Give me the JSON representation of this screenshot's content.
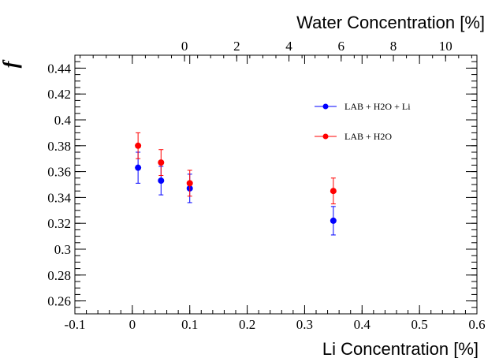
{
  "chart_data": {
    "type": "scatter",
    "title": "",
    "xlabel": "Li Concentration [%]",
    "x2label": "Water Concentration [%]",
    "ylabel": "f",
    "xlim": [
      -0.1,
      0.6
    ],
    "x2lim": [
      -4.2,
      11.2
    ],
    "ylim": [
      0.25,
      0.45
    ],
    "xticks": [
      "-0.1",
      "0",
      "0.1",
      "0.2",
      "0.3",
      "0.4",
      "0.5",
      "0.6"
    ],
    "x2ticks": [
      "0",
      "2",
      "4",
      "6",
      "8",
      "10"
    ],
    "yticks": [
      "0.26",
      "0.28",
      "0.3",
      "0.32",
      "0.34",
      "0.36",
      "0.38",
      "0.4",
      "0.42",
      "0.44"
    ],
    "grid": false,
    "legend_position": "upper-right",
    "series": [
      {
        "name": "LAB + H2O + Li",
        "color": "#0000ff",
        "x": [
          0.01,
          0.05,
          0.1,
          0.35
        ],
        "y": [
          0.363,
          0.353,
          0.347,
          0.322
        ],
        "yerr": [
          0.012,
          0.011,
          0.011,
          0.011
        ]
      },
      {
        "name": "LAB + H2O",
        "color": "#ff0000",
        "x": [
          0.01,
          0.05,
          0.1,
          0.35
        ],
        "y": [
          0.38,
          0.367,
          0.351,
          0.345
        ],
        "yerr": [
          0.01,
          0.01,
          0.01,
          0.01
        ]
      }
    ]
  }
}
